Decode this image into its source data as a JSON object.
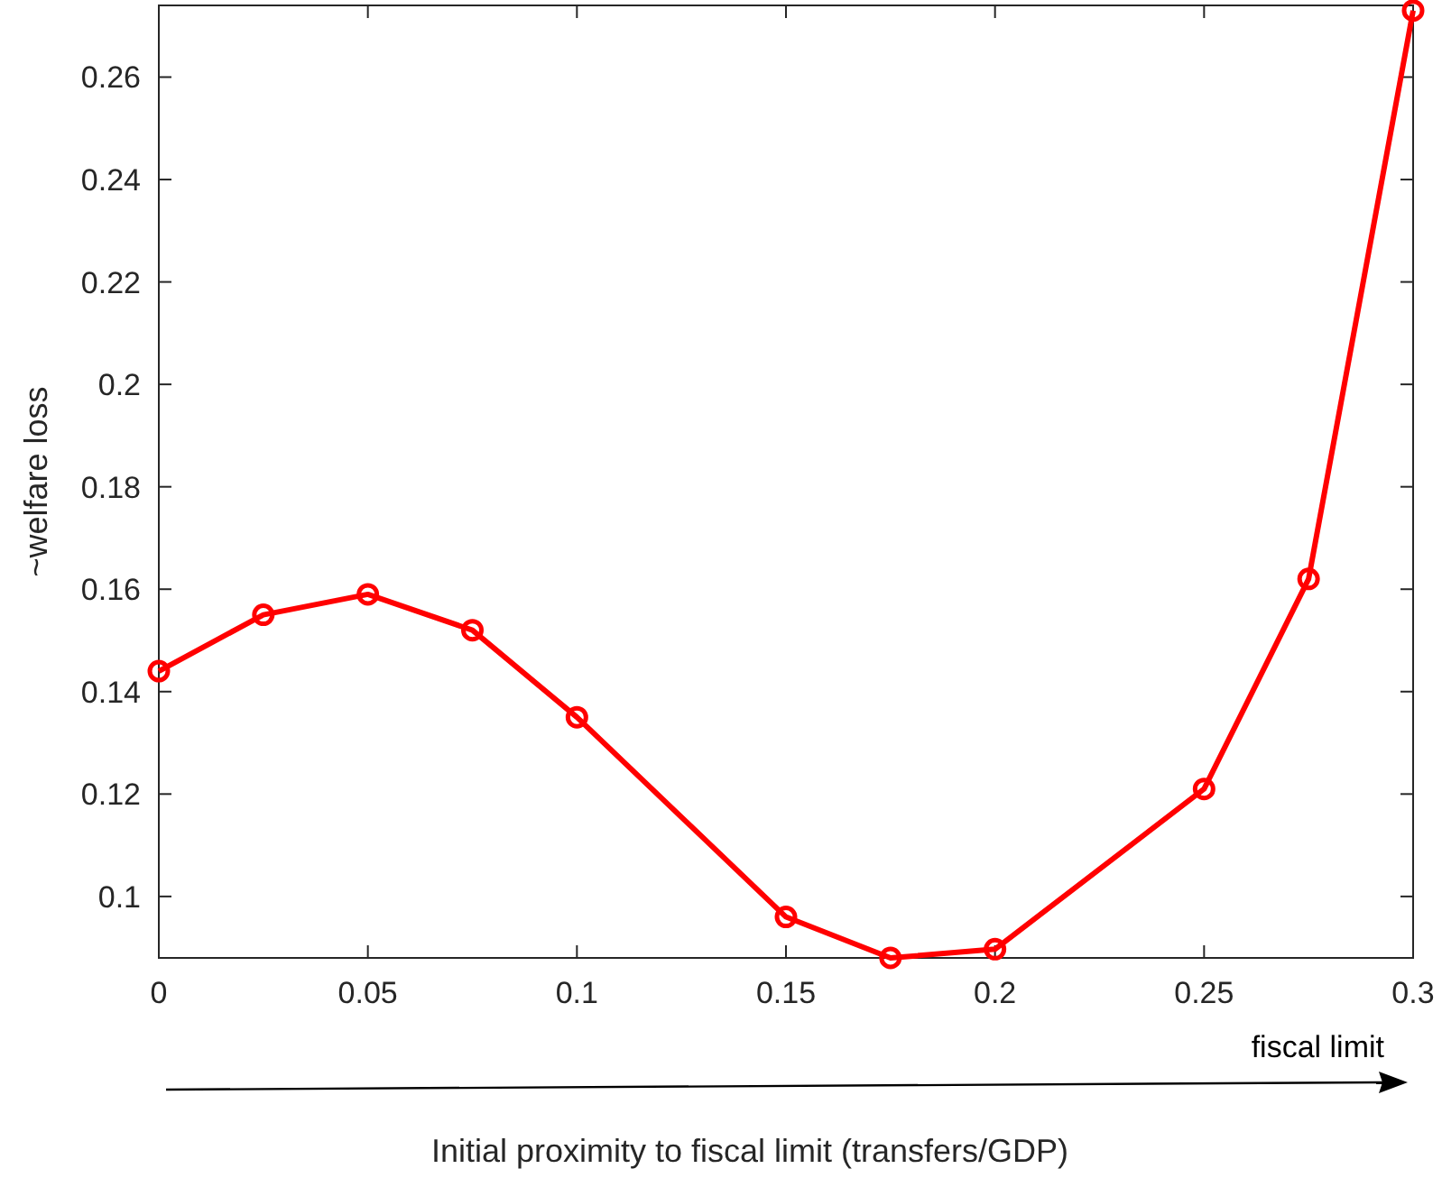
{
  "chart_data": {
    "type": "line",
    "xlabel": "Initial proximity to fiscal limit (transfers/GDP)",
    "ylabel": "~welfare loss",
    "annotations": [
      "fiscal limit"
    ],
    "x": [
      0,
      0.025,
      0.05,
      0.075,
      0.1,
      0.15,
      0.175,
      0.2,
      0.25,
      0.275,
      0.3
    ],
    "series": [
      {
        "color": "#ff0000",
        "values": [
          0.144,
          0.155,
          0.159,
          0.152,
          0.135,
          0.096,
          0.088,
          0.0897,
          0.121,
          0.162,
          0.273
        ]
      }
    ],
    "xlim": [
      0,
      0.3
    ],
    "xticks": [
      0,
      0.05,
      0.1,
      0.15,
      0.2,
      0.25,
      0.3
    ],
    "ylim": [
      0.088,
      0.274
    ],
    "yticks": [
      0.1,
      0.12,
      0.14,
      0.16,
      0.18,
      0.2,
      0.22,
      0.24,
      0.26
    ],
    "grid": false,
    "marker": "circle",
    "line_style": "solid"
  }
}
